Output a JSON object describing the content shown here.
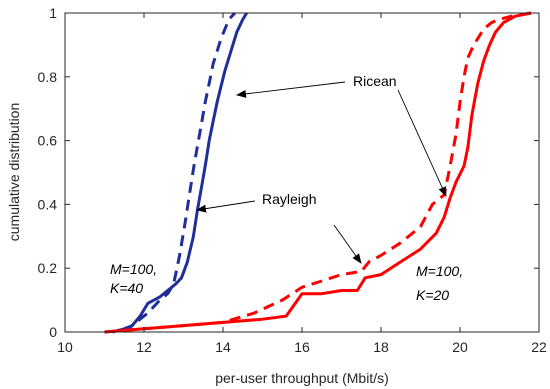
{
  "chart_data": {
    "type": "line",
    "title": "",
    "xlabel": "per-user throughput (Mbit/s)",
    "ylabel": "cumulative distribution",
    "xlim": [
      10,
      22
    ],
    "ylim": [
      0,
      1
    ],
    "xticks": [
      "10",
      "12",
      "14",
      "16",
      "18",
      "20",
      "22"
    ],
    "yticks": [
      "0",
      "0.2",
      "0.4",
      "0.6",
      "0.8",
      "1"
    ],
    "grid": false,
    "legend": "none",
    "series": [
      {
        "style": "solid",
        "color": "#1f2f9a",
        "x": [
          11.2,
          11.5,
          11.7,
          11.9,
          12.1,
          12.4,
          12.6,
          12.8,
          12.95,
          13.1,
          13.25,
          13.35,
          13.45,
          13.55,
          13.65,
          13.75,
          13.85,
          13.95,
          14.05,
          14.2,
          14.35,
          14.5,
          14.6
        ],
        "y": [
          0.0,
          0.01,
          0.02,
          0.05,
          0.09,
          0.11,
          0.13,
          0.15,
          0.17,
          0.22,
          0.3,
          0.38,
          0.45,
          0.52,
          0.6,
          0.66,
          0.72,
          0.77,
          0.82,
          0.88,
          0.94,
          0.98,
          1.0
        ]
      },
      {
        "style": "dashed",
        "color": "#1f2f9a",
        "x": [
          11.5,
          11.8,
          12.1,
          12.4,
          12.6,
          12.75,
          12.9,
          13.05,
          13.15,
          13.25,
          13.35,
          13.45,
          13.55,
          13.65,
          13.75,
          13.85,
          13.95,
          14.05,
          14.15,
          14.3
        ],
        "y": [
          0.0,
          0.03,
          0.06,
          0.1,
          0.12,
          0.15,
          0.24,
          0.35,
          0.43,
          0.51,
          0.58,
          0.65,
          0.72,
          0.78,
          0.84,
          0.88,
          0.92,
          0.95,
          0.98,
          1.0
        ]
      },
      {
        "style": "solid",
        "color": "#ff0000",
        "x": [
          11.0,
          12.0,
          13.0,
          14.0,
          15.0,
          15.6,
          16.0,
          16.5,
          17.0,
          17.4,
          17.6,
          18.0,
          18.5,
          19.0,
          19.4,
          19.6,
          19.75,
          19.9,
          20.1,
          20.2,
          20.3,
          20.45,
          20.6,
          20.75,
          20.9,
          21.1,
          21.4,
          21.8
        ],
        "y": [
          0.0,
          0.01,
          0.02,
          0.03,
          0.04,
          0.05,
          0.12,
          0.12,
          0.13,
          0.13,
          0.17,
          0.18,
          0.22,
          0.26,
          0.31,
          0.36,
          0.42,
          0.47,
          0.52,
          0.58,
          0.68,
          0.78,
          0.85,
          0.9,
          0.94,
          0.97,
          0.99,
          1.0
        ]
      },
      {
        "style": "dashed",
        "color": "#ff0000",
        "x": [
          11.0,
          12.0,
          13.0,
          14.0,
          14.8,
          15.5,
          16.0,
          16.5,
          17.0,
          17.5,
          17.7,
          18.0,
          18.5,
          19.0,
          19.3,
          19.6,
          19.75,
          19.9,
          20.0,
          20.1,
          20.2,
          20.35,
          20.5,
          20.6,
          20.8,
          21.0,
          21.3,
          21.8
        ],
        "y": [
          0.0,
          0.01,
          0.02,
          0.03,
          0.06,
          0.1,
          0.14,
          0.16,
          0.18,
          0.19,
          0.22,
          0.24,
          0.28,
          0.33,
          0.4,
          0.43,
          0.52,
          0.62,
          0.72,
          0.8,
          0.86,
          0.9,
          0.93,
          0.95,
          0.97,
          0.98,
          0.99,
          1.0
        ]
      }
    ],
    "annotations": [
      {
        "text": "Ricean",
        "x": 18.4,
        "y": 0.8
      },
      {
        "text": "Rayleigh",
        "x": 15.6,
        "y": 0.44
      },
      {
        "text": "M=100,",
        "x": 11.6,
        "y": 0.21
      },
      {
        "text": "K=40",
        "x": 11.6,
        "y": 0.14
      },
      {
        "text": "M=100,",
        "x": 19.2,
        "y": 0.19
      },
      {
        "text": "K=20",
        "x": 19.2,
        "y": 0.11
      }
    ]
  }
}
